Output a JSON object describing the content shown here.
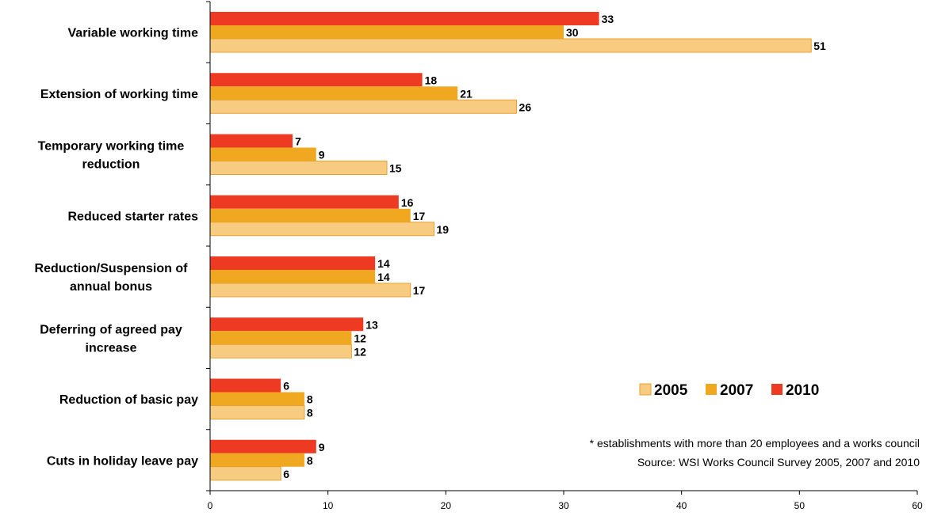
{
  "chart_data": {
    "type": "bar",
    "orientation": "horizontal",
    "categories": [
      [
        "Variable working time"
      ],
      [
        "Extension of working time"
      ],
      [
        "Temporary working time",
        "reduction"
      ],
      [
        "Reduced starter rates"
      ],
      [
        "Reduction/Suspension of",
        "annual bonus"
      ],
      [
        "Deferring of agreed pay",
        "increase"
      ],
      [
        "Reduction of basic pay"
      ],
      [
        "Cuts in holiday leave pay"
      ]
    ],
    "series": [
      {
        "name": "2010",
        "color": "#EE3A23",
        "values": [
          33,
          18,
          7,
          16,
          14,
          13,
          6,
          9
        ]
      },
      {
        "name": "2007",
        "color": "#F0A820",
        "values": [
          30,
          21,
          9,
          17,
          14,
          12,
          8,
          8
        ]
      },
      {
        "name": "2005",
        "color": "#F8CC80",
        "values": [
          51,
          26,
          15,
          19,
          17,
          12,
          8,
          6
        ]
      }
    ],
    "legend_order": [
      "2005",
      "2007",
      "2010"
    ],
    "xlim": [
      0,
      60
    ],
    "xticks": [
      0,
      10,
      20,
      30,
      40,
      50,
      60
    ],
    "grid": false,
    "legend_position": "right",
    "notes": [
      "* establishments with more than 20 employees and a works council",
      "Source: WSI Works Council Survey 2005, 2007 and 2010"
    ]
  }
}
